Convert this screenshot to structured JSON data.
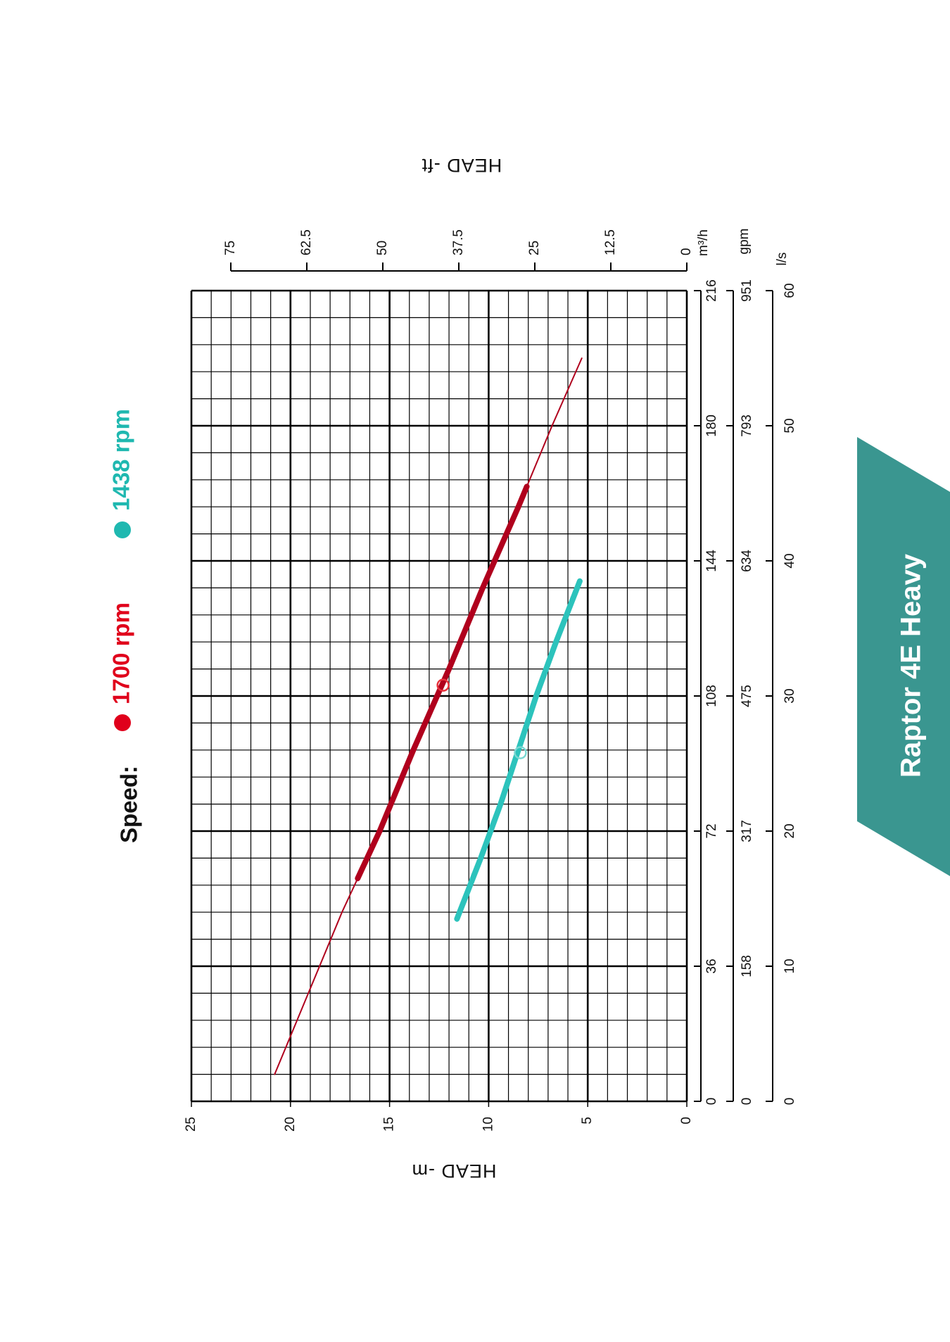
{
  "badge": {
    "text": "Raptor 4E Heavy",
    "color": "#3a9690"
  },
  "legend": {
    "prefix": "Speed:",
    "items": [
      {
        "label": "1700 rpm",
        "color": "#e0001b"
      },
      {
        "label": "1438 rpm",
        "color": "#1fb8b0"
      }
    ]
  },
  "chart_data": {
    "type": "line",
    "orientation": "rotated-90-clockwise",
    "title": "",
    "x_axes": [
      {
        "unit": "m³/h",
        "range": [
          0,
          216
        ],
        "ticks": [
          "0",
          "36",
          "72",
          "108",
          "144",
          "180",
          "216"
        ]
      },
      {
        "unit": "gpm",
        "range": [
          0,
          951
        ],
        "ticks": [
          "0",
          "158",
          "317",
          "475",
          "634",
          "793",
          "951"
        ]
      },
      {
        "unit": "l/s",
        "range": [
          0,
          60
        ],
        "ticks": [
          "0",
          "10",
          "20",
          "30",
          "40",
          "50",
          "60"
        ]
      }
    ],
    "y_axes": [
      {
        "label": "HEAD -m",
        "range": [
          0,
          25
        ],
        "ticks": [
          "0",
          "5",
          "10",
          "15",
          "20",
          "25"
        ]
      },
      {
        "label": "HEAD -ft",
        "range": [
          0,
          75
        ],
        "ticks": [
          "0",
          "12.5",
          "25",
          "37.5",
          "50",
          "62.5",
          "75"
        ]
      }
    ],
    "grid": true,
    "series": [
      {
        "name": "1700 rpm",
        "color": "#b0001d",
        "curve_x_lps": [
          2,
          8,
          14,
          20,
          26,
          32,
          38,
          44,
          50,
          55
        ],
        "curve_head_m": [
          20.8,
          19.1,
          17.4,
          15.5,
          13.8,
          12.0,
          10.3,
          8.5,
          6.8,
          5.3
        ],
        "operating_range_lps": [
          16.5,
          45.5
        ],
        "duty_point": {
          "x_lps": 30.8,
          "head_m": 12.3
        }
      },
      {
        "name": "1438 rpm",
        "color": "#2cc3bc",
        "curve_x_lps": [
          13.5,
          18,
          22,
          26,
          30,
          34,
          38.5
        ],
        "curve_head_m": [
          11.6,
          10.4,
          9.4,
          8.5,
          7.6,
          6.6,
          5.4
        ],
        "operating_range_lps": [
          13.5,
          38.5
        ],
        "duty_point": {
          "x_lps": 25.8,
          "head_m": 8.4
        }
      }
    ]
  }
}
